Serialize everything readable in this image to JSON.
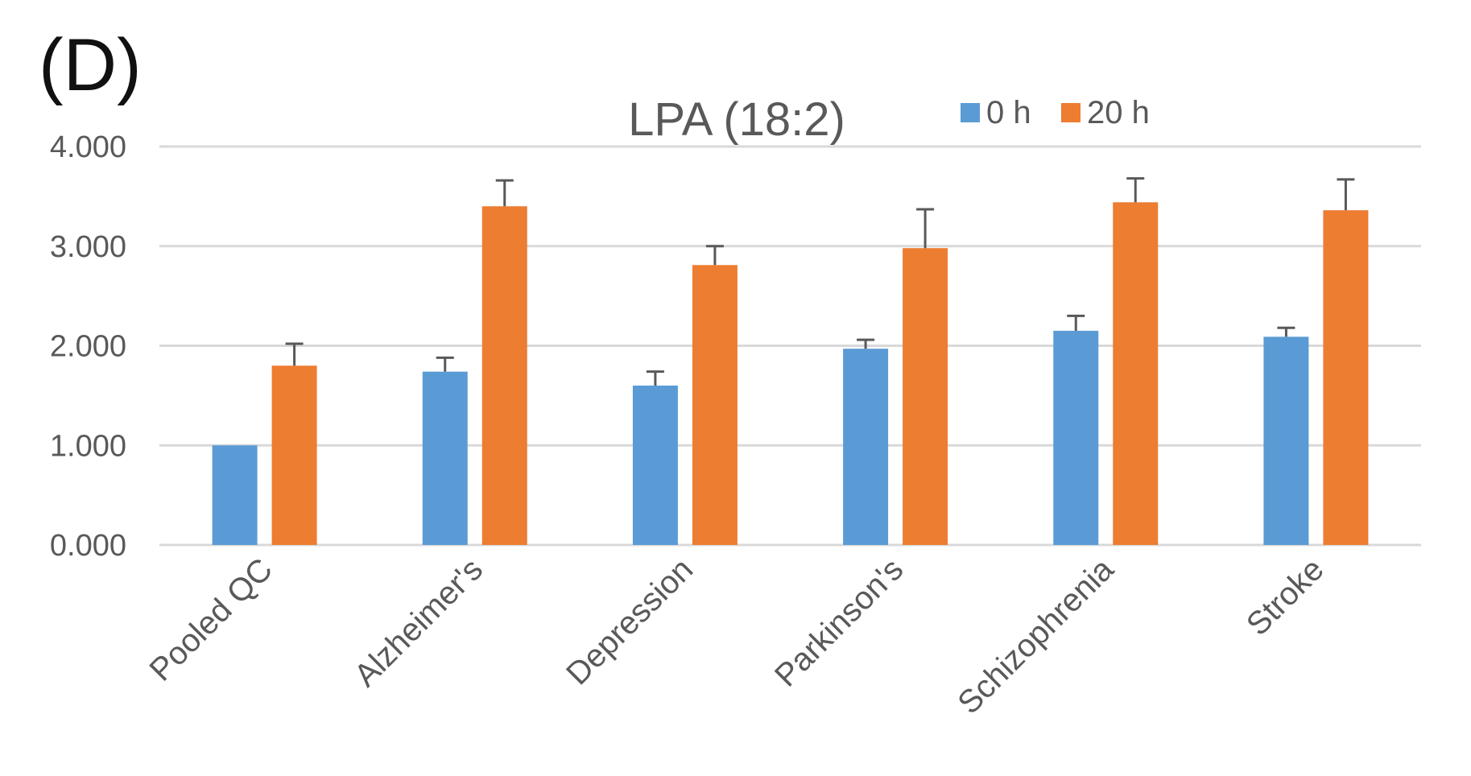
{
  "panel_label": "(D)",
  "colors": {
    "series_0h": "#5b9bd5",
    "series_20h": "#ed7d31",
    "grid": "#d9d9d9",
    "text": "#595959"
  },
  "chart_data": {
    "type": "bar",
    "title": "LPA (18:2)",
    "xlabel": "",
    "ylabel": "",
    "ylim": [
      0,
      4
    ],
    "yticks": [
      "0.000",
      "1.000",
      "2.000",
      "3.000",
      "4.000"
    ],
    "grid": true,
    "legend_position": "top-right",
    "categories": [
      "Pooled QC",
      "Alzheimer's",
      "Depression",
      "Parkinson's",
      "Schizophrenia",
      "Stroke"
    ],
    "series": [
      {
        "name": "0 h",
        "color": "#5b9bd5",
        "values": [
          1.0,
          1.74,
          1.6,
          1.97,
          2.15,
          2.09
        ],
        "errors": [
          0,
          0.14,
          0.14,
          0.09,
          0.15,
          0.09
        ]
      },
      {
        "name": "20 h",
        "color": "#ed7d31",
        "values": [
          1.8,
          3.4,
          2.81,
          2.98,
          3.44,
          3.36
        ],
        "errors": [
          0.22,
          0.26,
          0.19,
          0.39,
          0.24,
          0.31
        ]
      }
    ]
  }
}
